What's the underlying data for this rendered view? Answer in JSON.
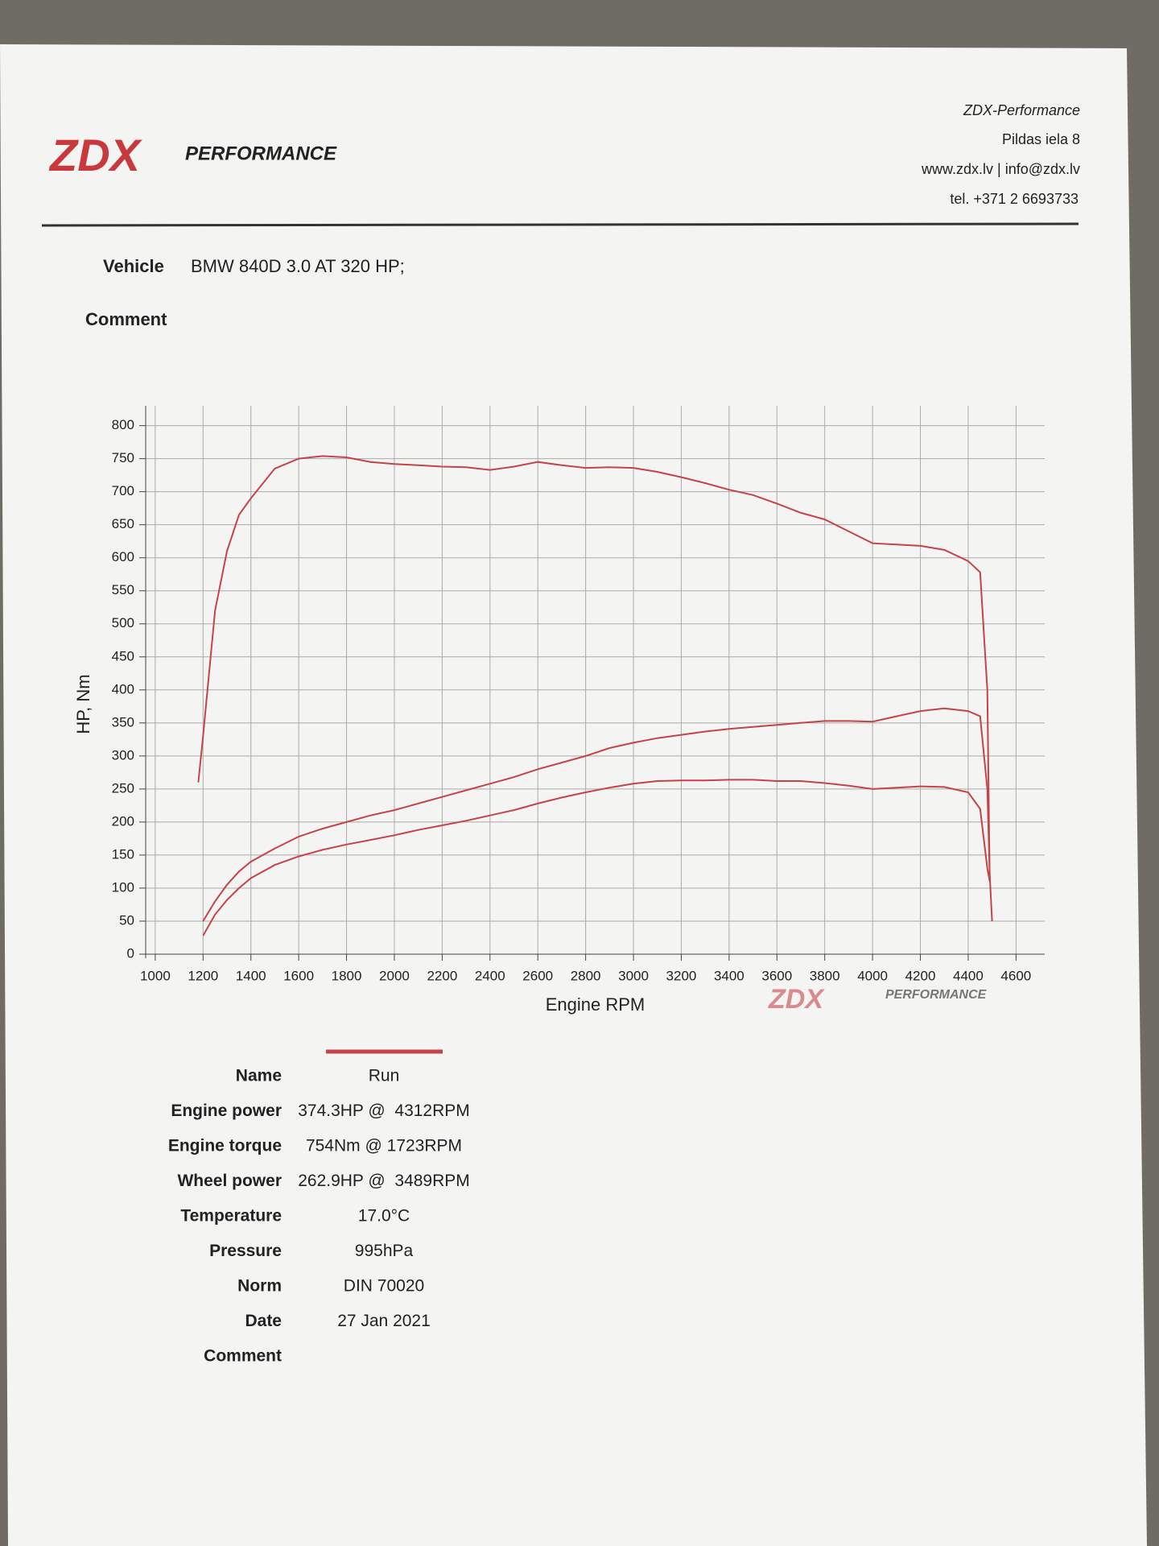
{
  "header": {
    "logo": "ZDX",
    "logo_sub": "PERFORMANCE",
    "company": "ZDX-Performance",
    "address": "Pildas iela 8",
    "web": "www.zdx.lv | info@zdx.lv",
    "phone": "tel. +371 2 6693733"
  },
  "vehicle": {
    "label": "Vehicle",
    "value": "BMW 840D 3.0 AT 320 HP;"
  },
  "comment_label": "Comment",
  "chart_data": {
    "type": "line",
    "x_label": "Engine RPM",
    "y_label": "HP, Nm",
    "x": [
      1180,
      1200,
      1250,
      1300,
      1350,
      1400,
      1500,
      1600,
      1700,
      1800,
      1900,
      2000,
      2100,
      2200,
      2300,
      2400,
      2500,
      2600,
      2700,
      2800,
      2900,
      3000,
      3100,
      3200,
      3300,
      3400,
      3500,
      3600,
      3700,
      3800,
      3900,
      4000,
      4100,
      4200,
      4300,
      4400,
      4450,
      4480,
      4490,
      4500
    ],
    "series": [
      {
        "color": "#c4444a",
        "values": [
          260,
          330,
          520,
          610,
          665,
          690,
          735,
          750,
          754,
          752,
          745,
          742,
          740,
          738,
          737,
          733,
          738,
          745,
          740,
          736,
          737,
          736,
          730,
          722,
          713,
          703,
          695,
          682,
          668,
          658,
          640,
          622,
          620,
          618,
          612,
          595,
          578,
          400,
          110,
          null
        ]
      },
      {
        "color": "#c4444a",
        "values": [
          null,
          50,
          80,
          105,
          125,
          140,
          160,
          178,
          190,
          200,
          210,
          218,
          228,
          238,
          248,
          258,
          268,
          280,
          290,
          300,
          312,
          320,
          327,
          332,
          337,
          341,
          344,
          347,
          350,
          353,
          353,
          352,
          360,
          368,
          372,
          368,
          360,
          250,
          120,
          50
        ]
      },
      {
        "color": "#c4444a",
        "values": [
          null,
          28,
          60,
          82,
          100,
          115,
          135,
          148,
          158,
          166,
          173,
          180,
          188,
          195,
          202,
          210,
          218,
          228,
          237,
          245,
          252,
          258,
          262,
          263,
          263,
          264,
          264,
          262,
          262,
          259,
          255,
          250,
          252,
          254,
          253,
          245,
          220,
          130,
          110,
          null
        ]
      }
    ],
    "xlim": [
      960,
      4720
    ],
    "ylim": [
      0,
      830
    ],
    "xticks": [
      1000,
      1200,
      1400,
      1600,
      1800,
      2000,
      2200,
      2400,
      2600,
      2800,
      3000,
      3200,
      3400,
      3600,
      3800,
      4000,
      4200,
      4400,
      4600
    ],
    "yticks": [
      0,
      50,
      100,
      150,
      200,
      250,
      300,
      350,
      400,
      450,
      500,
      550,
      600,
      650,
      700,
      750,
      800
    ],
    "grid": true
  },
  "table": {
    "rows": [
      [
        "Name",
        "Run"
      ],
      [
        "Engine power",
        "374.3HP @  4312RPM"
      ],
      [
        "Engine torque",
        "754Nm @ 1723RPM"
      ],
      [
        "Wheel power",
        "262.9HP @  3489RPM"
      ],
      [
        "Temperature",
        "17.0°C"
      ],
      [
        "Pressure",
        "995hPa"
      ],
      [
        "Norm",
        "DIN 70020"
      ],
      [
        "Date",
        "27 Jan 2021"
      ],
      [
        "Comment"
      ]
    ]
  }
}
